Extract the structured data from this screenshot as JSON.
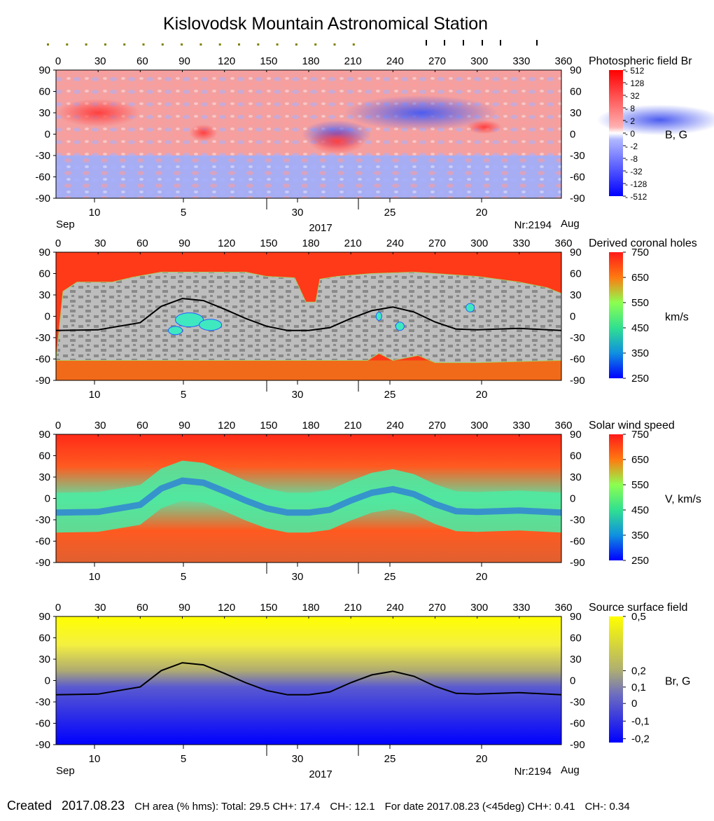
{
  "title": "Kislovodsk Mountain Astronomical Station",
  "footer": {
    "created_label": "Created",
    "created_date": "2017.08.23",
    "ch_area": "CH area (% hms): Total: 29.5 CH+: 17.4",
    "ch_minus": "CH-: 12.1",
    "for_date": "For date 2017.08.23 (<45deg) CH+: 0.41",
    "ch_minus_date": "CH-: 0.34"
  },
  "chart_data": [
    {
      "type": "heatmap",
      "title": "Photospheric field Br",
      "colorbar_label": "B, G",
      "colorbar_ticks": [
        "512",
        "128",
        "32",
        "8",
        "2",
        "0",
        "-2",
        "-8",
        "-32",
        "-128",
        "-512"
      ],
      "xlim": [
        0,
        360
      ],
      "ylim": [
        -90,
        90
      ],
      "x_ticks": [
        "0",
        "30",
        "60",
        "90",
        "120",
        "150",
        "180",
        "210",
        "240",
        "270",
        "300",
        "330",
        "360"
      ],
      "y_ticks": [
        "90",
        "60",
        "30",
        "0",
        "-30",
        "-60",
        "-90"
      ],
      "date_ticks": [
        "10",
        "5",
        "30",
        "25",
        "20"
      ],
      "month_left": "Sep",
      "year": "2017",
      "rotation": "Nr:2194",
      "month_right": "Aug"
    },
    {
      "type": "heatmap",
      "title": "Derived coronal holes",
      "colorbar_label": "km/s",
      "colorbar_ticks": [
        "750",
        "650",
        "550",
        "450",
        "350",
        "250"
      ],
      "xlim": [
        0,
        360
      ],
      "ylim": [
        -90,
        90
      ],
      "x_ticks": [
        "0",
        "30",
        "60",
        "90",
        "120",
        "150",
        "180",
        "210",
        "240",
        "270",
        "300",
        "330",
        "360"
      ],
      "y_ticks": [
        "90",
        "60",
        "30",
        "0",
        "-30",
        "-60",
        "-90"
      ],
      "date_ticks": [
        "10",
        "5",
        "30",
        "25",
        "20"
      ]
    },
    {
      "type": "heatmap",
      "title": "Solar wind speed",
      "colorbar_label": "V, km/s",
      "colorbar_ticks": [
        "750",
        "650",
        "550",
        "450",
        "350",
        "250"
      ],
      "xlim": [
        0,
        360
      ],
      "ylim": [
        -90,
        90
      ],
      "x_ticks": [
        "0",
        "30",
        "60",
        "90",
        "120",
        "150",
        "180",
        "210",
        "240",
        "270",
        "300",
        "330",
        "360"
      ],
      "y_ticks": [
        "90",
        "60",
        "30",
        "0",
        "-30",
        "-60",
        "-90"
      ],
      "date_ticks": [
        "10",
        "5",
        "30",
        "25",
        "20"
      ]
    },
    {
      "type": "heatmap",
      "title": "Source surface field",
      "colorbar_label": "Br, G",
      "colorbar_ticks": [
        "0,5",
        "0,2",
        "0,1",
        "0",
        "-0,1",
        "-0,2"
      ],
      "xlim": [
        0,
        360
      ],
      "ylim": [
        -90,
        90
      ],
      "x_ticks": [
        "0",
        "30",
        "60",
        "90",
        "120",
        "150",
        "180",
        "210",
        "240",
        "270",
        "300",
        "330",
        "360"
      ],
      "y_ticks": [
        "90",
        "60",
        "30",
        "0",
        "-30",
        "-60",
        "-90"
      ],
      "date_ticks": [
        "10",
        "5",
        "30",
        "25",
        "20"
      ],
      "month_left": "Sep",
      "year": "2017",
      "rotation": "Nr:2194",
      "month_right": "Aug",
      "neutral_line": {
        "x": [
          0,
          30,
          60,
          75,
          90,
          105,
          120,
          135,
          150,
          165,
          180,
          195,
          210,
          225,
          240,
          255,
          270,
          285,
          300,
          330,
          360
        ],
        "y": [
          -20,
          -19,
          -9,
          14,
          25,
          22,
          10,
          -3,
          -14,
          -20,
          -20,
          -16,
          -3,
          8,
          13,
          6,
          -8,
          -18,
          -19,
          -17,
          -20
        ]
      }
    }
  ]
}
